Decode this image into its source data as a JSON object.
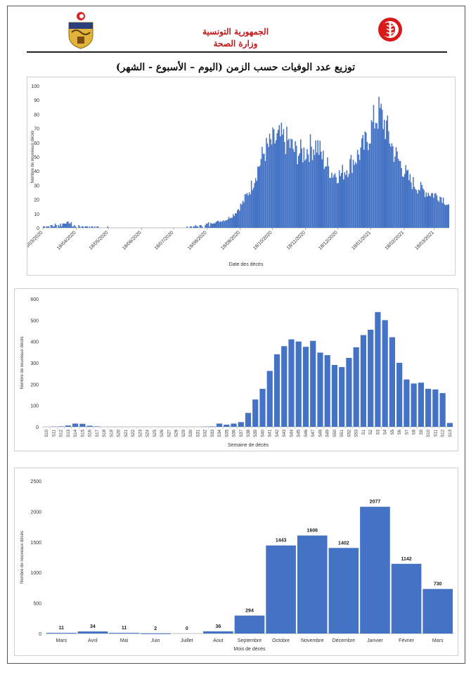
{
  "header": {
    "republic": "الجمهورية التونسية",
    "ministry": "وزارة الصحة",
    "main_title": "توزيع عدد الوفيات حسب الزمن (اليوم – الأسبوع - الشهر)"
  },
  "colors": {
    "bar": "#4472c4",
    "frame": "#555555",
    "header_red": "#c01818"
  },
  "chart_data": [
    {
      "type": "bar",
      "title": "",
      "xlabel": "Date des décès",
      "ylabel": "Nombre de nouveaux décès",
      "ylim": [
        0,
        100
      ],
      "yticks": [
        "0",
        "10",
        "20",
        "30",
        "40",
        "50",
        "60",
        "70",
        "80",
        "90",
        "100"
      ],
      "x_tick_labels": [
        "18/03/2020",
        "18/04/2020",
        "18/05/2020",
        "18/06/2020",
        "18/07/2020",
        "18/08/2020",
        "18/09/2020",
        "18/10/2020",
        "18/11/2020",
        "18/12/2020",
        "18/01/2021",
        "18/02/2021",
        "18/03/2021"
      ],
      "x_start": "2020-03-18",
      "x_end": "2021-03-31",
      "profile": [
        [
          "2020-03-18",
          1
        ],
        [
          "2020-03-28",
          2
        ],
        [
          "2020-04-05",
          3
        ],
        [
          "2020-04-10",
          4
        ],
        [
          "2020-04-18",
          1
        ],
        [
          "2020-04-28",
          1
        ],
        [
          "2020-05-10",
          0.5
        ],
        [
          "2020-06-01",
          0
        ],
        [
          "2020-07-15",
          0
        ],
        [
          "2020-08-01",
          0.5
        ],
        [
          "2020-08-15",
          2
        ],
        [
          "2020-08-25",
          4
        ],
        [
          "2020-09-05",
          6
        ],
        [
          "2020-09-12",
          10
        ],
        [
          "2020-09-20",
          18
        ],
        [
          "2020-09-28",
          30
        ],
        [
          "2020-10-05",
          45
        ],
        [
          "2020-10-10",
          55
        ],
        [
          "2020-10-18",
          62
        ],
        [
          "2020-10-25",
          65
        ],
        [
          "2020-11-01",
          62
        ],
        [
          "2020-11-08",
          55
        ],
        [
          "2020-11-15",
          54
        ],
        [
          "2020-11-22",
          58
        ],
        [
          "2020-11-28",
          60
        ],
        [
          "2020-12-05",
          48
        ],
        [
          "2020-12-12",
          40
        ],
        [
          "2020-12-20",
          38
        ],
        [
          "2020-12-28",
          45
        ],
        [
          "2021-01-05",
          52
        ],
        [
          "2021-01-12",
          60
        ],
        [
          "2021-01-18",
          72
        ],
        [
          "2021-01-22",
          80
        ],
        [
          "2021-01-26",
          83
        ],
        [
          "2021-02-01",
          72
        ],
        [
          "2021-02-08",
          55
        ],
        [
          "2021-02-15",
          45
        ],
        [
          "2021-02-22",
          35
        ],
        [
          "2021-03-01",
          30
        ],
        [
          "2021-03-10",
          26
        ],
        [
          "2021-03-18",
          24
        ],
        [
          "2021-03-25",
          22
        ],
        [
          "2021-03-31",
          16
        ]
      ]
    },
    {
      "type": "bar",
      "title": "",
      "xlabel": "Semaine de décès",
      "ylabel": "Nombre de nouveaux décès",
      "ylim": [
        0,
        600
      ],
      "yticks": [
        "0",
        "100",
        "200",
        "300",
        "400",
        "500",
        "600"
      ],
      "categories": [
        "S10",
        "S11",
        "S12",
        "S13",
        "S14",
        "S15",
        "S16",
        "S17",
        "S18",
        "S19",
        "S20",
        "S21",
        "S22",
        "S23",
        "S24",
        "S25",
        "S26",
        "S27",
        "S28",
        "S29",
        "S30",
        "S31",
        "S32",
        "S33",
        "S34",
        "S35",
        "S36",
        "S37",
        "S38",
        "S39",
        "S40",
        "S41",
        "S42",
        "S43",
        "S44",
        "S45",
        "S46",
        "S47",
        "S48",
        "S49",
        "S50",
        "S51",
        "S52",
        "S53",
        "S1",
        "S2",
        "S3",
        "S4",
        "S5",
        "S6",
        "S7",
        "S8",
        "S9",
        "S10",
        "S11",
        "S12",
        "S13"
      ],
      "values": [
        0,
        1,
        2,
        6,
        15,
        14,
        5,
        2,
        0,
        0,
        0,
        0,
        0,
        0,
        0,
        0,
        0,
        0,
        0,
        0,
        0,
        0,
        1,
        2,
        15,
        10,
        15,
        22,
        65,
        128,
        178,
        262,
        340,
        378,
        410,
        400,
        375,
        403,
        348,
        336,
        290,
        280,
        323,
        373,
        430,
        455,
        538,
        500,
        420,
        300,
        222,
        203,
        207,
        178,
        175,
        158,
        18
      ]
    },
    {
      "type": "bar",
      "title": "",
      "xlabel": "Mois de décès",
      "ylabel": "Nombre de nouveaux décès",
      "ylim": [
        0,
        2500
      ],
      "yticks": [
        "0",
        "500",
        "1000",
        "1500",
        "2000",
        "2500"
      ],
      "categories": [
        "Mars",
        "Avril",
        "Mai",
        "Juin",
        "Juillet",
        "Aout",
        "Septembre",
        "Octobre",
        "Novembre",
        "Décembre",
        "Janvier",
        "Février",
        "Mars"
      ],
      "values": [
        11,
        34,
        11,
        2,
        0,
        36,
        294,
        1443,
        1606,
        1402,
        2077,
        1142,
        730
      ],
      "data_labels": [
        "11",
        "34",
        "11",
        "2",
        "0",
        "36",
        "294",
        "1443",
        "1606",
        "1402",
        "2077",
        "1142",
        "730"
      ]
    }
  ]
}
